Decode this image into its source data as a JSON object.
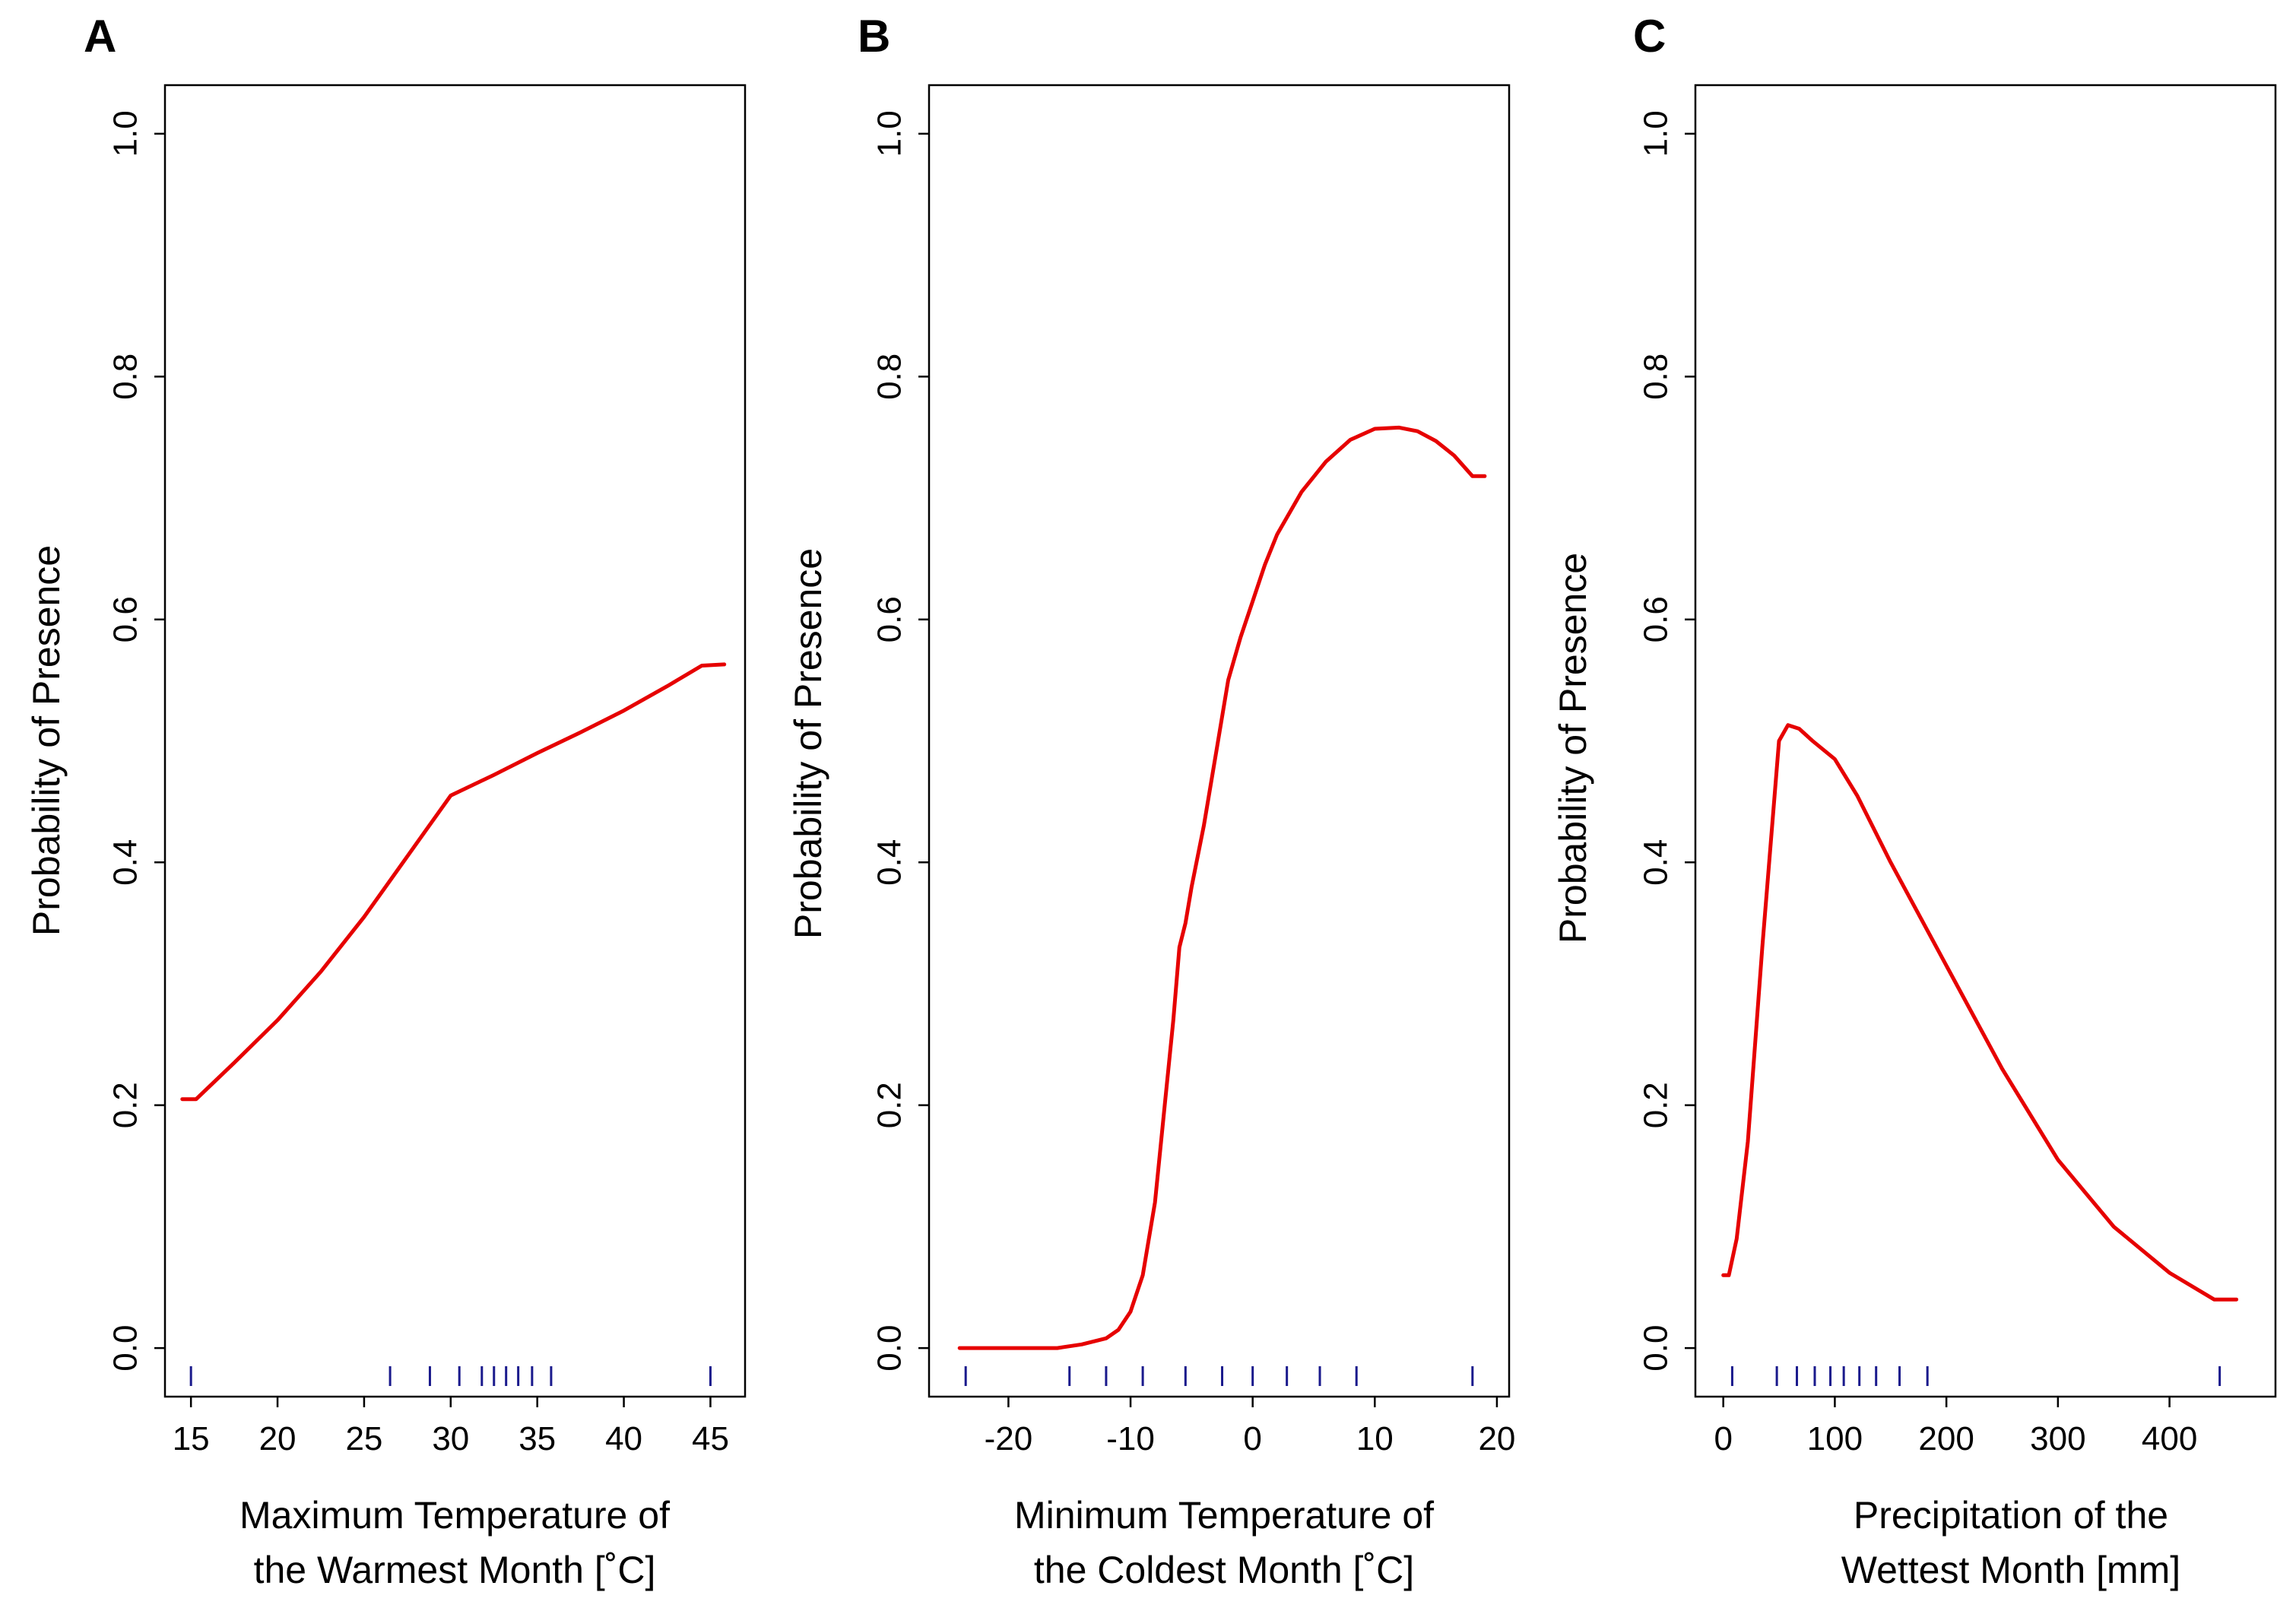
{
  "chart_data": [
    {
      "panel": "A",
      "type": "line",
      "xlabel": [
        "Maximum Temperature of",
        "the Warmest Month [˚C]"
      ],
      "ylabel": "Probability of Presence",
      "xlim": [
        13.5,
        47.0
      ],
      "ylim": [
        -0.04,
        1.04
      ],
      "xticks": [
        15,
        20,
        25,
        30,
        35,
        40,
        45
      ],
      "xtick_labels": [
        "15",
        "20",
        "25",
        "30",
        "35",
        "40",
        "45"
      ],
      "yticks": [
        0.0,
        0.2,
        0.4,
        0.6,
        0.8,
        1.0
      ],
      "ytick_labels": [
        "0.0",
        "0.2",
        "0.4",
        "0.6",
        "0.8",
        "1.0"
      ],
      "rug": [
        15,
        26.5,
        28.8,
        30.5,
        31.8,
        32.5,
        33.2,
        33.9,
        34.7,
        35.8,
        45
      ],
      "series": [
        {
          "color": "#e60000",
          "x": [
            14.5,
            15.3,
            17.5,
            20,
            22.5,
            25,
            27.5,
            28.5,
            30,
            32.5,
            35,
            37.5,
            40,
            42.5,
            44.5,
            45.8
          ],
          "y": [
            0.205,
            0.205,
            0.235,
            0.27,
            0.31,
            0.355,
            0.405,
            0.425,
            0.455,
            0.472,
            0.49,
            0.507,
            0.525,
            0.545,
            0.562,
            0.563
          ]
        }
      ]
    },
    {
      "panel": "B",
      "type": "line",
      "xlabel": [
        "Minimum Temperature of",
        "the Coldest Month [˚C]"
      ],
      "ylabel": "Probability of Presence",
      "xlim": [
        -26.5,
        21.0
      ],
      "ylim": [
        -0.04,
        1.04
      ],
      "xticks": [
        -20,
        -10,
        0,
        10,
        20
      ],
      "xtick_labels": [
        "-20",
        "-10",
        "0",
        "10",
        "20"
      ],
      "yticks": [
        0.0,
        0.2,
        0.4,
        0.6,
        0.8,
        1.0
      ],
      "ytick_labels": [
        "0.0",
        "0.2",
        "0.4",
        "0.6",
        "0.8",
        "1.0"
      ],
      "rug": [
        -23.5,
        -15,
        -12,
        -9,
        -5.5,
        -2.5,
        0,
        2.8,
        5.5,
        8.5,
        18
      ],
      "series": [
        {
          "color": "#e60000",
          "x": [
            -24,
            -16,
            -14,
            -12,
            -11,
            -10,
            -9,
            -8,
            -7.2,
            -6.5,
            -6,
            -5.5,
            -5,
            -4,
            -3,
            -2,
            -1,
            0,
            1,
            2,
            4,
            6,
            8,
            10,
            12,
            13.5,
            15,
            16.5,
            18,
            19
          ],
          "y": [
            0.0,
            0.0,
            0.003,
            0.008,
            0.015,
            0.03,
            0.06,
            0.12,
            0.2,
            0.27,
            0.33,
            0.35,
            0.38,
            0.43,
            0.49,
            0.55,
            0.585,
            0.615,
            0.645,
            0.67,
            0.705,
            0.73,
            0.748,
            0.757,
            0.758,
            0.755,
            0.747,
            0.735,
            0.718,
            0.718
          ]
        }
      ]
    },
    {
      "panel": "C",
      "type": "line",
      "xlabel": [
        "Precipitation of the",
        "Wettest Month [mm]"
      ],
      "ylabel": "Probability of Presence",
      "xlim": [
        -25,
        495
      ],
      "ylim": [
        -0.04,
        1.04
      ],
      "xticks": [
        0,
        100,
        200,
        300,
        400
      ],
      "xtick_labels": [
        "0",
        "100",
        "200",
        "300",
        "400"
      ],
      "yticks": [
        0.0,
        0.2,
        0.4,
        0.6,
        0.8,
        1.0
      ],
      "ytick_labels": [
        "0.0",
        "0.2",
        "0.4",
        "0.6",
        "0.8",
        "1.0"
      ],
      "rug": [
        8,
        48,
        66,
        82,
        96,
        108,
        122,
        137,
        158,
        183,
        445
      ],
      "series": [
        {
          "color": "#e60000",
          "x": [
            0,
            5,
            12,
            22,
            35,
            50,
            58,
            68,
            80,
            100,
            120,
            150,
            200,
            250,
            300,
            350,
            400,
            440,
            460
          ],
          "y": [
            0.06,
            0.06,
            0.09,
            0.17,
            0.33,
            0.5,
            0.513,
            0.51,
            0.5,
            0.485,
            0.455,
            0.4,
            0.315,
            0.23,
            0.155,
            0.1,
            0.062,
            0.04,
            0.04
          ]
        }
      ]
    }
  ]
}
